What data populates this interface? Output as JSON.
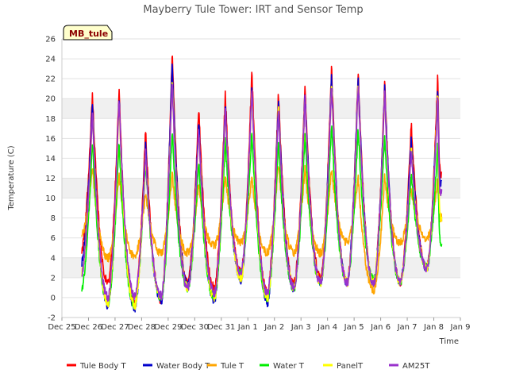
{
  "chart_data": {
    "type": "line",
    "title": "Mayberry Tule Tower: IRT and Sensor Temp",
    "xlabel": "Time",
    "ylabel": "Temperature (C)",
    "site_label": "MB_tule",
    "xlim": [
      0,
      15
    ],
    "ylim": [
      -2,
      26
    ],
    "yticks": [
      -2,
      0,
      2,
      4,
      6,
      8,
      10,
      12,
      14,
      16,
      18,
      20,
      22,
      24,
      26
    ],
    "xtick_labels": [
      "Dec 25",
      "Dec 26",
      "Dec 27",
      "Dec 28",
      "Dec 29",
      "Dec 30",
      "Dec 31",
      "Jan 1",
      "Jan 2",
      "Jan 3",
      "Jan 4",
      "Jan 5",
      "Jan 6",
      "Jan 7",
      "Jan 8",
      "Jan 9"
    ],
    "day_ticks": [
      0,
      1,
      2,
      3,
      4,
      5,
      6,
      7,
      8,
      9,
      10,
      11,
      12,
      13,
      14,
      15
    ],
    "data_start": 0.75,
    "data_end": 14.3,
    "daily_peak_times": [
      1.15,
      2.15,
      3.15,
      4.15,
      5.15,
      6.15,
      7.15,
      8.15,
      9.15,
      10.15,
      11.15,
      12.15,
      13.15,
      14.15
    ],
    "daily_min_times": [
      0.85,
      1.75,
      2.75,
      3.75,
      4.75,
      5.75,
      6.75,
      7.75,
      8.75,
      9.75,
      10.75,
      11.75,
      12.75,
      13.75,
      14.25
    ],
    "series": [
      {
        "name": "Tule Body T",
        "color": "#ff0000",
        "peaks": [
          20.5,
          21,
          17,
          24.8,
          19.2,
          20.6,
          22.8,
          20.7,
          21.3,
          23.2,
          22.9,
          21.8,
          17.5,
          22.6
        ],
        "mins": [
          4.8,
          1.5,
          -0.5,
          -0.2,
          1.5,
          1,
          2.5,
          0.5,
          1.5,
          2,
          1.5,
          1.5,
          1.5,
          3,
          12.5
        ]
      },
      {
        "name": "Water Body T",
        "color": "#0000cc",
        "peaks": [
          19.5,
          20.3,
          15.5,
          23.8,
          18,
          19.5,
          21.3,
          20,
          20.7,
          22.3,
          22.3,
          21.2,
          16,
          21.5
        ],
        "mins": [
          3.5,
          -0.8,
          -1,
          -0.3,
          1.2,
          -0.3,
          1.8,
          -0.5,
          0.8,
          1.5,
          1.5,
          1.5,
          1.5,
          3,
          11.5
        ]
      },
      {
        "name": "Tule T",
        "color": "#ffa500",
        "peaks": [
          13,
          12.4,
          10.5,
          12.4,
          11.5,
          12.2,
          12.2,
          13.5,
          13,
          12.9,
          12.2,
          12,
          11,
          12
        ],
        "mins": [
          6.5,
          4,
          4.2,
          4.5,
          4.5,
          5.2,
          5.5,
          4.5,
          4.5,
          4.5,
          5.5,
          0.8,
          5.5,
          6,
          8
        ]
      },
      {
        "name": "Water T",
        "color": "#00ee00",
        "peaks": [
          15.8,
          15.8,
          14,
          16.8,
          14,
          15.8,
          16.8,
          15.8,
          16.5,
          17.5,
          17.2,
          16.5,
          12.5,
          15.5
        ],
        "mins": [
          1,
          -0.5,
          -0.8,
          0,
          1,
          0,
          2.5,
          0,
          1,
          1.5,
          1.5,
          1.8,
          1.5,
          3,
          5.5
        ]
      },
      {
        "name": "PanelT",
        "color": "#ffff00",
        "peaks": [
          18.5,
          19.5,
          14.5,
          22,
          17,
          19,
          21,
          19,
          20,
          21.8,
          21.5,
          20.5,
          15,
          21
        ],
        "mins": [
          2.5,
          -0.5,
          -0.8,
          0,
          1,
          0,
          2,
          0,
          1,
          1.5,
          1.5,
          1.5,
          1.5,
          3,
          8
        ]
      },
      {
        "name": "AM25T",
        "color": "#9932cc",
        "peaks": [
          18.5,
          20,
          14.5,
          21.5,
          17,
          19,
          21,
          19,
          20,
          21.5,
          21.5,
          20.5,
          15,
          20.5
        ],
        "mins": [
          2.5,
          0,
          0.2,
          0.2,
          1,
          0.5,
          2.5,
          0.5,
          1,
          1.5,
          1.5,
          1.5,
          1.5,
          3,
          10.5
        ]
      }
    ]
  }
}
